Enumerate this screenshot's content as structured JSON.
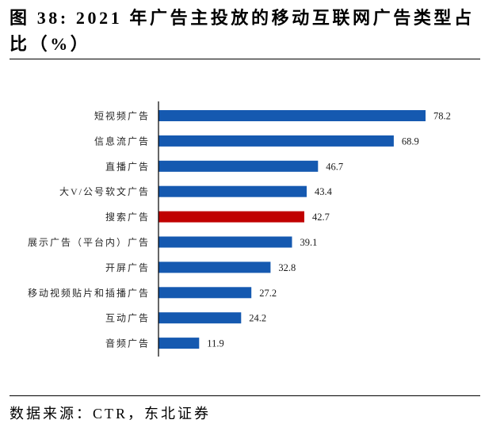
{
  "chart_data": {
    "type": "bar",
    "orientation": "horizontal",
    "title": "图 38: 2021 年广告主投放的移动互联网广告类型占比（%）",
    "categories": [
      "短视频广告",
      "信息流广告",
      "直播广告",
      "大V/公号软文广告",
      "搜索广告",
      "展示广告（平台内）广告",
      "开屏广告",
      "移动视频贴片和插播广告",
      "互动广告",
      "音频广告"
    ],
    "values": [
      78.2,
      68.9,
      46.7,
      43.4,
      42.7,
      39.1,
      32.8,
      27.2,
      24.2,
      11.9
    ],
    "bar_colors": [
      "#1559B0",
      "#1559B0",
      "#1559B0",
      "#1559B0",
      "#C00000",
      "#1559B0",
      "#1559B0",
      "#1559B0",
      "#1559B0",
      "#1559B0"
    ],
    "show_value_labels": true,
    "grid": false,
    "legend": false
  },
  "source": "数据来源：CTR，东北证券"
}
